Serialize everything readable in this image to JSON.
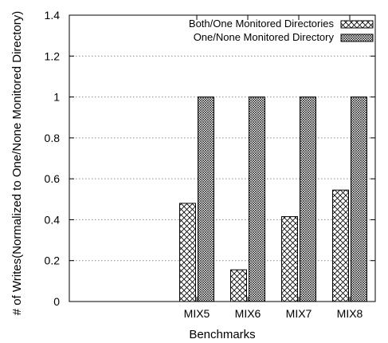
{
  "chart_data": {
    "type": "bar",
    "xlabel": "Benchmarks",
    "ylabel": "# of Writes(Normalized to One/None Monitored Directory)",
    "categories": [
      "MIX5",
      "MIX6",
      "MIX7",
      "MIX8"
    ],
    "ylim": [
      0,
      1.4
    ],
    "yticks": [
      "0",
      "0.2",
      "0.4",
      "0.6",
      "0.8",
      "1",
      "1.2",
      "1.4"
    ],
    "grid": "horizontal dotted",
    "legend_position": "top-right",
    "series": [
      {
        "name": "Both/One Monitored Directories",
        "pattern": "sparse-crosshatch",
        "values": [
          0.48,
          0.155,
          0.415,
          0.545
        ]
      },
      {
        "name": "One/None Monitored Directory",
        "pattern": "dense-crosshatch",
        "values": [
          1.0,
          1.0,
          1.0,
          1.0
        ]
      }
    ]
  }
}
